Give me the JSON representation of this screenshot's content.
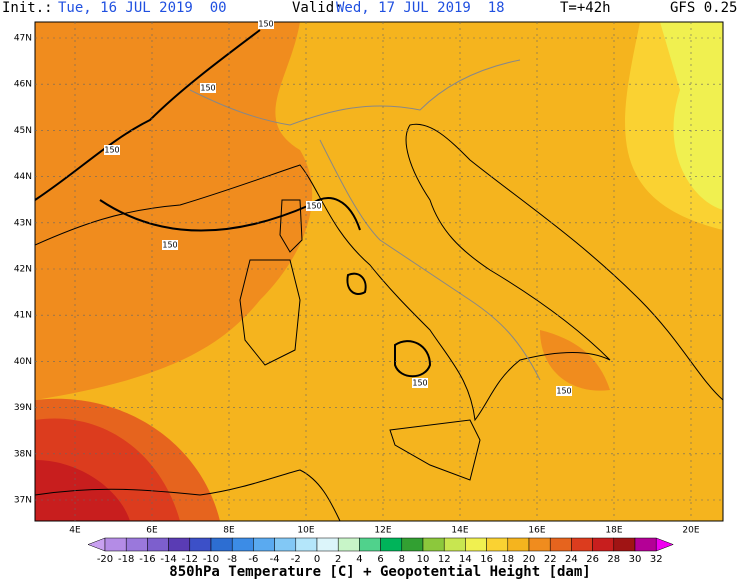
{
  "header": {
    "init_label": "Init.:",
    "init": "Tue, 16 JUL 2019  00",
    "valid_label": "Valid:",
    "valid": "Wed, 17 JUL 2019  18",
    "lead": "T=+42h",
    "model": "GFS 0.25"
  },
  "map": {
    "lat_labels": [
      "47N",
      "46N",
      "45N",
      "44N",
      "43N",
      "42N",
      "41N",
      "40N",
      "39N",
      "38N",
      "37N"
    ],
    "lon_labels": [
      "4E",
      "6E",
      "8E",
      "10E",
      "12E",
      "14E",
      "16E",
      "18E",
      "20E"
    ],
    "contour_labels": [
      "150",
      "150",
      "150",
      "150",
      "150",
      "150",
      "150"
    ]
  },
  "colorbar": {
    "ticks": [
      -20,
      -18,
      -16,
      -14,
      -12,
      -10,
      -8,
      -6,
      -4,
      -2,
      0,
      2,
      4,
      6,
      8,
      10,
      12,
      14,
      16,
      18,
      20,
      22,
      24,
      26,
      28,
      30,
      32
    ],
    "colors": [
      "#c8a0f0",
      "#b48ce6",
      "#9a78dc",
      "#7d5fcd",
      "#5a3cb4",
      "#3c50c8",
      "#2d6ed2",
      "#3c8ce6",
      "#5aaaf0",
      "#82c8f5",
      "#b4e6fa",
      "#dcf5fa",
      "#c8f5c8",
      "#50d28c",
      "#00b45a",
      "#32a032",
      "#8cc83c",
      "#c8e650",
      "#f0f050",
      "#fad232",
      "#f5b41e",
      "#f08c1e",
      "#e6641e",
      "#dc3c1e",
      "#c81e1e",
      "#a01414",
      "#b40096",
      "#f000f0"
    ],
    "label": "850hPa Temperature [C] + Geopotential Height [dam]"
  }
}
